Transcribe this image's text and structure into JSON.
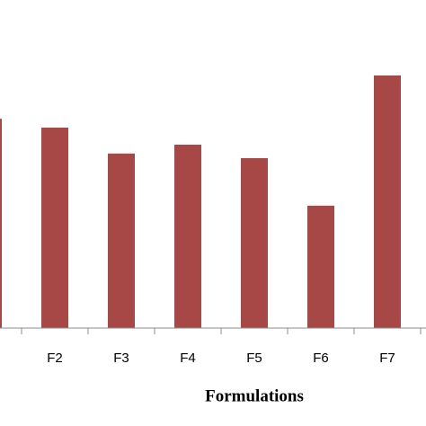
{
  "chart_data": {
    "type": "bar",
    "x_label": "Formulations",
    "categories": [
      null,
      "F2",
      "F3",
      "F4",
      "F5",
      "F6",
      "F7"
    ],
    "values": [
      63.8,
      61.1,
      53.2,
      55.9,
      51.8,
      37.3,
      77.0
    ],
    "color": "#a84846",
    "ylim": [
      0,
      100
    ]
  }
}
